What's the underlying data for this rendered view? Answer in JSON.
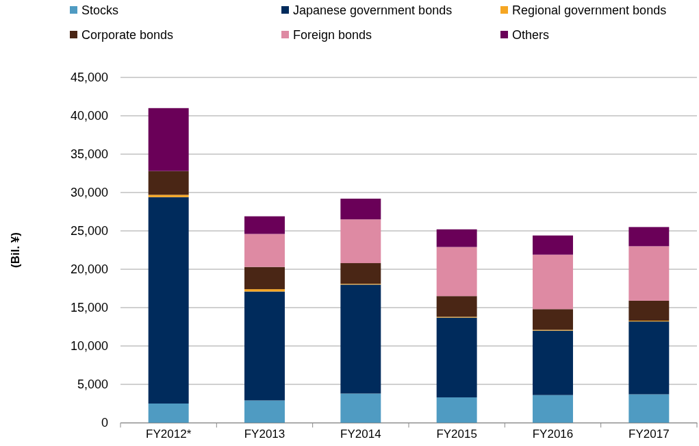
{
  "chart_data": {
    "type": "bar",
    "stacked": true,
    "ylabel": "(Bil. ¥)",
    "categories": [
      "FY2012*",
      "FY2013",
      "FY2014",
      "FY2015",
      "FY2016",
      "FY2017"
    ],
    "series": [
      {
        "name": "Stocks",
        "color": "#4f9bc2",
        "values": [
          2500,
          2900,
          3800,
          3300,
          3600,
          3700
        ]
      },
      {
        "name": "Japanese government bonds",
        "color": "#002b5c",
        "values": [
          26900,
          14200,
          14200,
          10400,
          8400,
          9500
        ]
      },
      {
        "name": "Regional government bonds",
        "color": "#f5a623",
        "values": [
          300,
          300,
          100,
          100,
          100,
          100
        ]
      },
      {
        "name": "Corporate bonds",
        "color": "#4a2615",
        "values": [
          3100,
          2900,
          2700,
          2700,
          2700,
          2600
        ]
      },
      {
        "name": "Foreign bonds",
        "color": "#de8aa3",
        "values": [
          0,
          4300,
          5700,
          6400,
          7100,
          7100
        ]
      },
      {
        "name": "Others",
        "color": "#6a0058",
        "values": [
          8200,
          2300,
          2700,
          2300,
          2500,
          2500
        ]
      }
    ],
    "ylim": [
      0,
      45000
    ],
    "yticks": [
      {
        "value": 0,
        "label": "0"
      },
      {
        "value": 5000,
        "label": "5,000"
      },
      {
        "value": 10000,
        "label": "10,000"
      },
      {
        "value": 15000,
        "label": "15,000"
      },
      {
        "value": 20000,
        "label": "20,000"
      },
      {
        "value": 25000,
        "label": "25,000"
      },
      {
        "value": 30000,
        "label": "30,000"
      },
      {
        "value": 35000,
        "label": "35,000"
      },
      {
        "value": 40000,
        "label": "40,000"
      },
      {
        "value": 45000,
        "label": "45,000"
      }
    ],
    "grid": "y",
    "legend": "top"
  }
}
